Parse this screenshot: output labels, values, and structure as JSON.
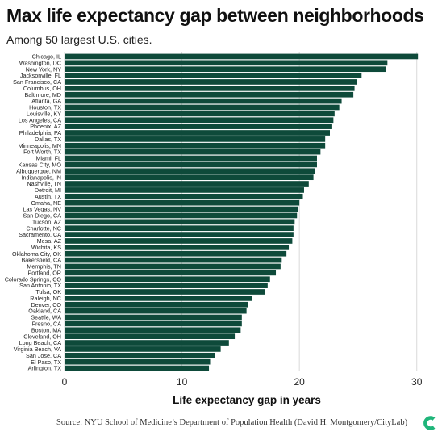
{
  "title": "Max life expectancy gap between neighborhoods",
  "subtitle": "Among 50 largest U.S. cities.",
  "source": "Source: NYU School of Medicine’s Department of Population Health (David H. Montgomery/CityLab)",
  "colors": {
    "bar": "#0e4a3a",
    "grid": "#d9d9d9",
    "logo": "#1fb57a"
  },
  "logo_icon": "citylab-c-logo-icon",
  "chart_data": {
    "type": "bar",
    "orientation": "horizontal",
    "xlabel": "Life expectancy gap in years",
    "xlim": [
      0,
      30.5
    ],
    "xticks": [
      0,
      10,
      20,
      30
    ],
    "grid": true,
    "categories": [
      "Chicago, IL",
      "Washington, DC",
      "New York, NY",
      "Jacksonville, FL",
      "San Francisco, CA",
      "Columbus, OH",
      "Baltimore, MD",
      "Atlanta, GA",
      "Houston, TX",
      "Louisville, KY",
      "Los Angeles, CA",
      "Phoenix, AZ",
      "Philadelphia, PA",
      "Dallas, TX",
      "Minneapolis, MN",
      "Fort Worth, TX",
      "Miami, FL",
      "Kansas City, MO",
      "Albuquerque, NM",
      "Indianapolis, IN",
      "Nashville, TN",
      "Detroit, MI",
      "Austin, TX",
      "Omaha, NE",
      "Las Vegas, NV",
      "San Diego, CA",
      "Tucson, AZ",
      "Charlotte, NC",
      "Sacramento, CA",
      "Mesa, AZ",
      "Wichita, KS",
      "Oklahoma City, OK",
      "Bakersfield, CA",
      "Memphis, TN",
      "Portland, OR",
      "Colorado Springs, CO",
      "San Antonio, TX",
      "Tulsa, OK",
      "Raleigh, NC",
      "Denver, CO",
      "Oakland, CA",
      "Seattle, WA",
      "Fresno, CA",
      "Boston, MA",
      "Cleveland, OH",
      "Long Beach, CA",
      "Virginia Beach, VA",
      "San Jose, CA",
      "El Paso, TX",
      "Arlington, TX"
    ],
    "values": [
      30.1,
      27.5,
      27.4,
      25.3,
      24.9,
      24.7,
      24.6,
      23.6,
      23.4,
      23.0,
      22.9,
      22.8,
      22.6,
      22.2,
      22.2,
      21.8,
      21.5,
      21.5,
      21.3,
      21.2,
      20.8,
      20.4,
      20.3,
      20.0,
      19.9,
      19.8,
      19.6,
      19.5,
      19.5,
      19.4,
      19.1,
      18.9,
      18.5,
      18.4,
      18.0,
      17.5,
      17.3,
      17.1,
      16.0,
      15.6,
      15.5,
      15.1,
      15.1,
      15.0,
      14.5,
      14.0,
      13.3,
      12.8,
      12.4,
      12.3
    ]
  }
}
